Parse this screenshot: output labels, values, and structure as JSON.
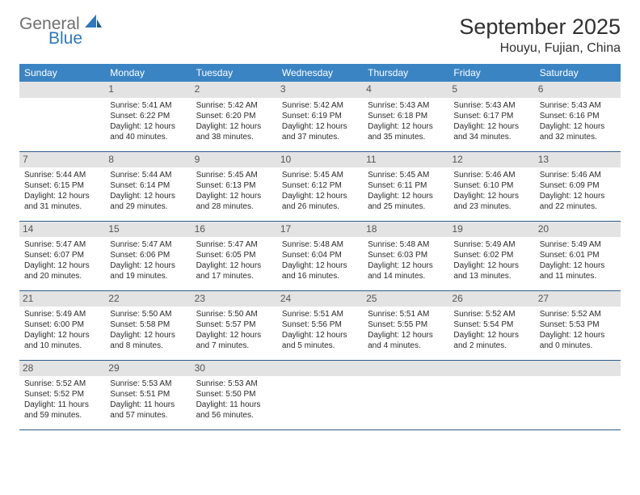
{
  "logo": {
    "word1": "General",
    "word2": "Blue"
  },
  "title": "September 2025",
  "location": "Houyu, Fujian, China",
  "colors": {
    "header_bg": "#3a84c4",
    "header_text": "#ffffff",
    "daynum_bg": "#e3e3e3",
    "daynum_text": "#555555",
    "body_text": "#2b2b2b",
    "rule": "#2f5d8a",
    "logo_gray": "#6f6f6f",
    "logo_blue": "#2f78bb"
  },
  "day_headers": [
    "Sunday",
    "Monday",
    "Tuesday",
    "Wednesday",
    "Thursday",
    "Friday",
    "Saturday"
  ],
  "weeks": [
    [
      {
        "n": "",
        "sr": "",
        "ss": "",
        "dl": ""
      },
      {
        "n": "1",
        "sr": "Sunrise: 5:41 AM",
        "ss": "Sunset: 6:22 PM",
        "dl": "Daylight: 12 hours and 40 minutes."
      },
      {
        "n": "2",
        "sr": "Sunrise: 5:42 AM",
        "ss": "Sunset: 6:20 PM",
        "dl": "Daylight: 12 hours and 38 minutes."
      },
      {
        "n": "3",
        "sr": "Sunrise: 5:42 AM",
        "ss": "Sunset: 6:19 PM",
        "dl": "Daylight: 12 hours and 37 minutes."
      },
      {
        "n": "4",
        "sr": "Sunrise: 5:43 AM",
        "ss": "Sunset: 6:18 PM",
        "dl": "Daylight: 12 hours and 35 minutes."
      },
      {
        "n": "5",
        "sr": "Sunrise: 5:43 AM",
        "ss": "Sunset: 6:17 PM",
        "dl": "Daylight: 12 hours and 34 minutes."
      },
      {
        "n": "6",
        "sr": "Sunrise: 5:43 AM",
        "ss": "Sunset: 6:16 PM",
        "dl": "Daylight: 12 hours and 32 minutes."
      }
    ],
    [
      {
        "n": "7",
        "sr": "Sunrise: 5:44 AM",
        "ss": "Sunset: 6:15 PM",
        "dl": "Daylight: 12 hours and 31 minutes."
      },
      {
        "n": "8",
        "sr": "Sunrise: 5:44 AM",
        "ss": "Sunset: 6:14 PM",
        "dl": "Daylight: 12 hours and 29 minutes."
      },
      {
        "n": "9",
        "sr": "Sunrise: 5:45 AM",
        "ss": "Sunset: 6:13 PM",
        "dl": "Daylight: 12 hours and 28 minutes."
      },
      {
        "n": "10",
        "sr": "Sunrise: 5:45 AM",
        "ss": "Sunset: 6:12 PM",
        "dl": "Daylight: 12 hours and 26 minutes."
      },
      {
        "n": "11",
        "sr": "Sunrise: 5:45 AM",
        "ss": "Sunset: 6:11 PM",
        "dl": "Daylight: 12 hours and 25 minutes."
      },
      {
        "n": "12",
        "sr": "Sunrise: 5:46 AM",
        "ss": "Sunset: 6:10 PM",
        "dl": "Daylight: 12 hours and 23 minutes."
      },
      {
        "n": "13",
        "sr": "Sunrise: 5:46 AM",
        "ss": "Sunset: 6:09 PM",
        "dl": "Daylight: 12 hours and 22 minutes."
      }
    ],
    [
      {
        "n": "14",
        "sr": "Sunrise: 5:47 AM",
        "ss": "Sunset: 6:07 PM",
        "dl": "Daylight: 12 hours and 20 minutes."
      },
      {
        "n": "15",
        "sr": "Sunrise: 5:47 AM",
        "ss": "Sunset: 6:06 PM",
        "dl": "Daylight: 12 hours and 19 minutes."
      },
      {
        "n": "16",
        "sr": "Sunrise: 5:47 AM",
        "ss": "Sunset: 6:05 PM",
        "dl": "Daylight: 12 hours and 17 minutes."
      },
      {
        "n": "17",
        "sr": "Sunrise: 5:48 AM",
        "ss": "Sunset: 6:04 PM",
        "dl": "Daylight: 12 hours and 16 minutes."
      },
      {
        "n": "18",
        "sr": "Sunrise: 5:48 AM",
        "ss": "Sunset: 6:03 PM",
        "dl": "Daylight: 12 hours and 14 minutes."
      },
      {
        "n": "19",
        "sr": "Sunrise: 5:49 AM",
        "ss": "Sunset: 6:02 PM",
        "dl": "Daylight: 12 hours and 13 minutes."
      },
      {
        "n": "20",
        "sr": "Sunrise: 5:49 AM",
        "ss": "Sunset: 6:01 PM",
        "dl": "Daylight: 12 hours and 11 minutes."
      }
    ],
    [
      {
        "n": "21",
        "sr": "Sunrise: 5:49 AM",
        "ss": "Sunset: 6:00 PM",
        "dl": "Daylight: 12 hours and 10 minutes."
      },
      {
        "n": "22",
        "sr": "Sunrise: 5:50 AM",
        "ss": "Sunset: 5:58 PM",
        "dl": "Daylight: 12 hours and 8 minutes."
      },
      {
        "n": "23",
        "sr": "Sunrise: 5:50 AM",
        "ss": "Sunset: 5:57 PM",
        "dl": "Daylight: 12 hours and 7 minutes."
      },
      {
        "n": "24",
        "sr": "Sunrise: 5:51 AM",
        "ss": "Sunset: 5:56 PM",
        "dl": "Daylight: 12 hours and 5 minutes."
      },
      {
        "n": "25",
        "sr": "Sunrise: 5:51 AM",
        "ss": "Sunset: 5:55 PM",
        "dl": "Daylight: 12 hours and 4 minutes."
      },
      {
        "n": "26",
        "sr": "Sunrise: 5:52 AM",
        "ss": "Sunset: 5:54 PM",
        "dl": "Daylight: 12 hours and 2 minutes."
      },
      {
        "n": "27",
        "sr": "Sunrise: 5:52 AM",
        "ss": "Sunset: 5:53 PM",
        "dl": "Daylight: 12 hours and 0 minutes."
      }
    ],
    [
      {
        "n": "28",
        "sr": "Sunrise: 5:52 AM",
        "ss": "Sunset: 5:52 PM",
        "dl": "Daylight: 11 hours and 59 minutes."
      },
      {
        "n": "29",
        "sr": "Sunrise: 5:53 AM",
        "ss": "Sunset: 5:51 PM",
        "dl": "Daylight: 11 hours and 57 minutes."
      },
      {
        "n": "30",
        "sr": "Sunrise: 5:53 AM",
        "ss": "Sunset: 5:50 PM",
        "dl": "Daylight: 11 hours and 56 minutes."
      },
      {
        "n": "",
        "sr": "",
        "ss": "",
        "dl": ""
      },
      {
        "n": "",
        "sr": "",
        "ss": "",
        "dl": ""
      },
      {
        "n": "",
        "sr": "",
        "ss": "",
        "dl": ""
      },
      {
        "n": "",
        "sr": "",
        "ss": "",
        "dl": ""
      }
    ]
  ]
}
